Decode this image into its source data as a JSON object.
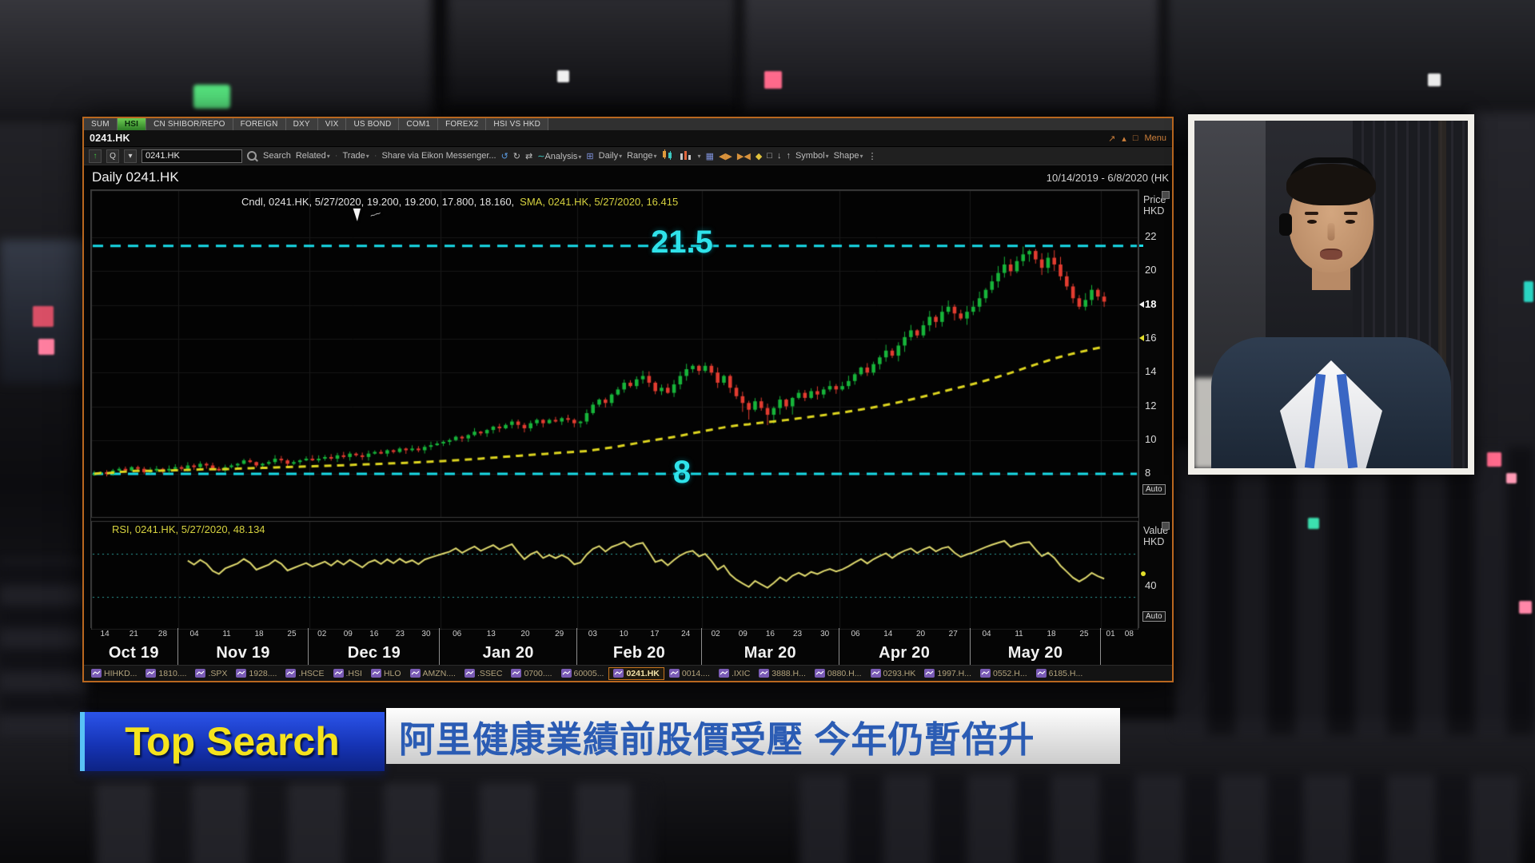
{
  "app": {
    "workspace_tabs": [
      "SUM",
      "HSI",
      "CN SHIBOR/REPO",
      "FOREIGN",
      "DXY",
      "VIX",
      "US BOND",
      "COM1",
      "FOREX2",
      "HSI VS HKD"
    ],
    "active_workspace_tab": "HSI",
    "window_title": "0241.HK",
    "menu_label": "Menu",
    "toolbar": {
      "quote_button": "Q",
      "symbol_value": "0241.HK",
      "search": "Search",
      "related": "Related",
      "trade": "Trade",
      "share": "Share via Eikon Messenger...",
      "analysis": "Analysis",
      "interval": "Daily",
      "range": "Range",
      "symbol_menu": "Symbol",
      "shape_menu": "Shape"
    },
    "chart_header": {
      "title": "Daily 0241.HK",
      "date_range": "10/14/2019 - 6/8/2020 (HK"
    },
    "legend": {
      "cndl": "Cndl, 0241.HK, 5/27/2020, 19.200, 19.200, 17.800, 18.160,",
      "sma": "SMA, 0241.HK, 5/27/2020, 16.415"
    },
    "price_axis": {
      "title_line1": "Price",
      "title_line2": "HKD",
      "ticks": [
        22,
        20,
        18,
        16,
        14,
        12,
        10,
        8
      ],
      "auto": "Auto",
      "last_price_marker": 18,
      "sma_marker": 16
    },
    "levels": {
      "upper_label": "21.5",
      "lower_label": "8"
    },
    "rsi_panel": {
      "legend": "RSI, 0241.HK, 5/27/2020, 48.134",
      "axis_line1": "Value",
      "axis_line2": "HKD",
      "tick": "40",
      "auto": "Auto"
    },
    "bottom_tabs": [
      "HIHKD...",
      "1810....",
      ".SPX",
      "1928....",
      ".HSCE",
      ".HSI",
      "HLO",
      "AMZN....",
      ".SSEC",
      "0700....",
      "60005...",
      "0241.HK",
      "0014....",
      ".IXIC",
      "3888.H...",
      "0880.H...",
      "0293.HK",
      "1997.H...",
      "0552.H...",
      "6185.H..."
    ],
    "active_bottom_tab": "0241.HK"
  },
  "icons": {
    "caret": "▾",
    "up_arrow": "↑",
    "down_arrow": "↓",
    "undo": "↺",
    "redo": "↻",
    "swap": "⇄",
    "wave": "∼",
    "grid": "⊞",
    "news": "▦",
    "left_right": "◀▶",
    "right_left": "▶◀",
    "diamond": "◆",
    "square": "□",
    "more": "⋮",
    "popout": "↗",
    "pin": "▴",
    "window": "□",
    "dot_sep": "·"
  },
  "chart_data": {
    "type": "candlestick",
    "symbol": "0241.HK",
    "interval": "Daily",
    "date_range": "10/14/2019 - 6/8/2020",
    "ylim": [
      5.4,
      24.8
    ],
    "y_ticks": [
      22,
      20,
      18,
      16,
      14,
      12,
      10,
      8
    ],
    "levels": {
      "resistance": 21.5,
      "support": 8
    },
    "sma": {
      "window": 80,
      "last": 16.415,
      "color": "#ddd51f"
    },
    "rsi": {
      "window": 14,
      "last": 48.134,
      "bands": [
        70,
        30
      ],
      "axis_tick": 40,
      "color": "#dfd96e"
    },
    "last_candle": {
      "date": "5/27/2020",
      "open": 19.2,
      "high": 19.2,
      "low": 17.8,
      "close": 18.16
    },
    "up_color": "#17b43a",
    "down_color": "#e23c30",
    "level_color": "#19dbe8",
    "total_slots": 168,
    "months": [
      {
        "label": "Oct 19",
        "slots": 14,
        "days": [
          "14",
          "21",
          "28"
        ]
      },
      {
        "label": "Nov 19",
        "slots": 21,
        "days": [
          "04",
          "11",
          "18",
          "25"
        ]
      },
      {
        "label": "Dec 19",
        "slots": 21,
        "days": [
          "02",
          "09",
          "16",
          "23",
          "30"
        ]
      },
      {
        "label": "Jan 20",
        "slots": 22,
        "days": [
          "06",
          "13",
          "20",
          "29"
        ]
      },
      {
        "label": "Feb 20",
        "slots": 20,
        "days": [
          "03",
          "10",
          "17",
          "24"
        ]
      },
      {
        "label": "Mar 20",
        "slots": 22,
        "days": [
          "02",
          "09",
          "16",
          "23",
          "30"
        ]
      },
      {
        "label": "Apr 20",
        "slots": 21,
        "days": [
          "06",
          "14",
          "20",
          "27"
        ]
      },
      {
        "label": "May 20",
        "slots": 21,
        "days": [
          "04",
          "11",
          "18",
          "25"
        ]
      },
      {
        "label": "",
        "slots": 6,
        "days": [
          "01",
          "08"
        ]
      }
    ],
    "closes": [
      8.0,
      8.1,
      8.0,
      8.2,
      8.3,
      8.2,
      8.4,
      8.3,
      8.1,
      8.2,
      8.3,
      8.2,
      8.3,
      8.4,
      8.3,
      8.5,
      8.4,
      8.6,
      8.5,
      8.3,
      8.2,
      8.4,
      8.5,
      8.6,
      8.8,
      8.7,
      8.5,
      8.6,
      8.7,
      8.9,
      8.8,
      8.6,
      8.7,
      8.8,
      8.9,
      8.8,
      8.9,
      9.0,
      8.9,
      9.1,
      9.0,
      9.2,
      9.1,
      9.0,
      9.2,
      9.3,
      9.2,
      9.4,
      9.3,
      9.5,
      9.4,
      9.5,
      9.4,
      9.6,
      9.7,
      9.8,
      9.9,
      10.0,
      10.2,
      10.1,
      10.3,
      10.5,
      10.4,
      10.6,
      10.8,
      10.7,
      10.9,
      11.1,
      10.9,
      10.7,
      11.0,
      11.2,
      11.0,
      11.2,
      11.1,
      11.3,
      11.2,
      11.0,
      11.1,
      11.6,
      12.1,
      12.4,
      12.2,
      12.7,
      13.0,
      13.4,
      13.2,
      13.6,
      13.8,
      13.4,
      12.9,
      13.1,
      12.8,
      13.3,
      13.8,
      14.2,
      14.4,
      14.1,
      14.4,
      14.0,
      13.4,
      13.8,
      13.1,
      12.6,
      12.2,
      11.8,
      12.3,
      11.9,
      11.5,
      11.9,
      12.4,
      12.0,
      12.5,
      12.8,
      12.5,
      12.9,
      12.7,
      13.0,
      13.2,
      13.0,
      13.2,
      13.5,
      13.9,
      14.3,
      14.0,
      14.5,
      14.9,
      15.3,
      15.0,
      15.6,
      16.1,
      16.5,
      16.2,
      16.8,
      17.3,
      17.0,
      17.6,
      17.9,
      17.5,
      17.2,
      17.6,
      17.9,
      18.4,
      18.9,
      19.4,
      19.9,
      20.4,
      20.0,
      20.6,
      21.0,
      21.2,
      20.7,
      20.2,
      20.8,
      20.4,
      19.7,
      19.1,
      18.4,
      17.9,
      18.3,
      18.9,
      18.5,
      18.2
    ]
  },
  "banner": {
    "tag": "Top Search",
    "headline": "阿里健康業績前股價受壓 今年仍暫倍升"
  }
}
